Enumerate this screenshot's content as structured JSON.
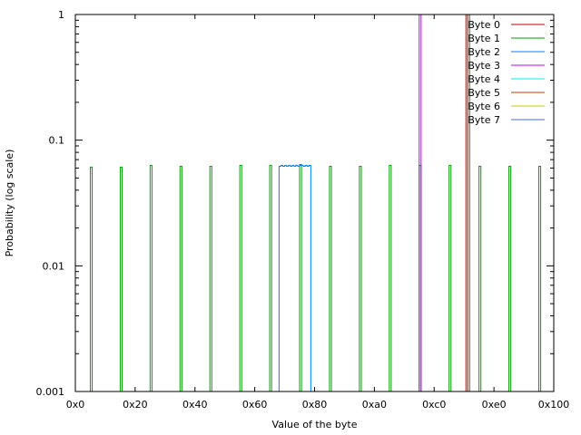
{
  "chart_data": {
    "type": "line",
    "xlabel": "Value of the byte",
    "ylabel": "Probability (log scale)",
    "xlim": [
      0,
      256
    ],
    "ylim": [
      0.001,
      1
    ],
    "y_scale": "log",
    "x_ticks": [
      {
        "value": 0,
        "label": "0x0"
      },
      {
        "value": 32,
        "label": "0x20"
      },
      {
        "value": 64,
        "label": "0x40"
      },
      {
        "value": 96,
        "label": "0x60"
      },
      {
        "value": 128,
        "label": "0x80"
      },
      {
        "value": 160,
        "label": "0xa0"
      },
      {
        "value": 192,
        "label": "0xc0"
      },
      {
        "value": 224,
        "label": "0xe0"
      },
      {
        "value": 256,
        "label": "0x100"
      }
    ],
    "y_ticks": [
      {
        "value": 0.001,
        "label": "0.001"
      },
      {
        "value": 0.01,
        "label": "0.01"
      },
      {
        "value": 0.1,
        "label": "0.1"
      },
      {
        "value": 1,
        "label": "1"
      }
    ],
    "grid": false,
    "legend_position": "top-right",
    "series": [
      {
        "name": "Byte 0",
        "color": "#cc0000",
        "points": [
          [
            209,
            1.0
          ]
        ]
      },
      {
        "name": "Byte 1",
        "color": "#00a000",
        "points": [
          [
            8,
            0.061
          ],
          [
            24,
            0.061
          ],
          [
            40,
            0.063
          ],
          [
            56,
            0.062
          ],
          [
            72,
            0.062
          ],
          [
            88,
            0.063
          ],
          [
            104,
            0.063
          ],
          [
            120,
            0.064
          ],
          [
            136,
            0.062
          ],
          [
            152,
            0.062
          ],
          [
            168,
            0.063
          ],
          [
            184,
            0.063
          ],
          [
            200,
            0.063
          ],
          [
            216,
            0.062
          ],
          [
            232,
            0.062
          ],
          [
            248,
            0.062
          ]
        ]
      },
      {
        "name": "Byte 2",
        "color": "#0080ff",
        "points": [
          [
            109,
            0.062
          ],
          [
            110,
            0.063
          ],
          [
            111,
            0.062
          ],
          [
            112,
            0.063
          ],
          [
            113,
            0.062
          ],
          [
            114,
            0.063
          ],
          [
            115,
            0.062
          ],
          [
            116,
            0.063
          ],
          [
            117,
            0.062
          ],
          [
            118,
            0.063
          ],
          [
            119,
            0.062
          ],
          [
            120,
            0.063
          ],
          [
            121,
            0.063
          ],
          [
            122,
            0.062
          ],
          [
            123,
            0.063
          ],
          [
            124,
            0.062
          ],
          [
            125,
            0.063
          ]
        ]
      },
      {
        "name": "Byte 3",
        "color": "#c000ff",
        "points": [
          [
            184,
            1.0
          ]
        ]
      },
      {
        "name": "Byte 4",
        "color": "#00eeee",
        "points": []
      },
      {
        "name": "Byte 5",
        "color": "#c04000",
        "points": [
          [
            210,
            1.0
          ]
        ]
      },
      {
        "name": "Byte 6",
        "color": "#c8c800",
        "points": []
      },
      {
        "name": "Byte 7",
        "color": "#4169e1",
        "points": []
      }
    ]
  }
}
